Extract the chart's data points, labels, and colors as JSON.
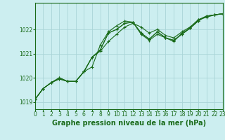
{
  "title": "Graphe pression niveau de la mer (hPa)",
  "bg_color": "#cceef0",
  "grid_color": "#aad4d8",
  "line_color": "#1a6b1a",
  "xlim": [
    0,
    23
  ],
  "ylim": [
    1018.7,
    1023.1
  ],
  "yticks": [
    1019,
    1020,
    1021,
    1022
  ],
  "xticks": [
    0,
    1,
    2,
    3,
    4,
    5,
    6,
    7,
    8,
    9,
    10,
    11,
    12,
    13,
    14,
    15,
    16,
    17,
    18,
    19,
    20,
    21,
    22,
    23
  ],
  "series": [
    [
      1019.1,
      1019.55,
      1019.8,
      1019.95,
      1019.85,
      1019.85,
      1020.25,
      1020.85,
      1021.1,
      1021.5,
      1021.8,
      1022.1,
      1022.25,
      1022.1,
      1021.85,
      1022.0,
      1021.75,
      1021.65,
      1021.9,
      1022.1,
      1022.4,
      1022.55,
      1022.6,
      1022.65
    ],
    [
      1019.1,
      1019.55,
      1019.8,
      1019.95,
      1019.85,
      1019.85,
      1020.25,
      1020.45,
      1021.35,
      1021.9,
      1022.15,
      1022.35,
      1022.3,
      1021.8,
      1021.55,
      1021.8,
      1021.65,
      1021.5,
      1021.85,
      1022.05,
      1022.4,
      1022.5,
      1022.6,
      1022.65
    ],
    [
      1019.1,
      1019.55,
      1019.8,
      1020.0,
      1019.85,
      1019.85,
      1020.25,
      1020.85,
      1021.15,
      1021.85,
      1022.0,
      1022.25,
      1022.3,
      1021.85,
      1021.6,
      1021.9,
      1021.65,
      1021.55,
      1021.8,
      1022.05,
      1022.35,
      1022.55,
      1022.6,
      1022.65
    ],
    [
      1019.1,
      1019.55,
      1019.8,
      1020.0,
      1019.85,
      1019.85,
      1020.25,
      1020.85,
      1021.15,
      1021.85,
      1022.0,
      1022.25,
      1022.3,
      1021.85,
      1021.6,
      1021.9,
      1021.65,
      1021.55,
      1021.8,
      1022.05,
      1022.35,
      1022.55,
      1022.6,
      1022.65
    ]
  ],
  "title_fontsize": 7,
  "tick_fontsize": 5.5,
  "title_color": "#1a6b1a",
  "spine_color": "#1a6b1a"
}
